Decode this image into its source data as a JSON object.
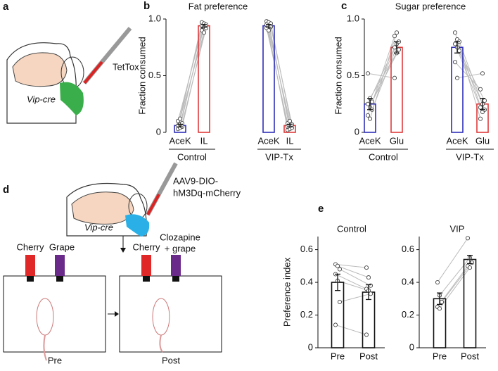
{
  "panel_labels": [
    "a",
    "b",
    "c",
    "d",
    "e"
  ],
  "diagram_a": {
    "genotype": "Vip-cre",
    "injection": "TetTox"
  },
  "diagram_d": {
    "genotype": "Vip-cre",
    "injection": [
      "AAV9-DIO-",
      "hM3Dq-mCherry"
    ],
    "pre_bottles": [
      "Cherry",
      "Grape"
    ],
    "post_bottle_1": "Cherry",
    "post_bottle_2": [
      "Clozapine",
      "+ grape"
    ],
    "pre_label": "Pre",
    "post_label": "Post"
  },
  "chart_data": [
    {
      "type": "bar",
      "title": "Fat preference",
      "ylabel": "Fraction consumed",
      "ylim": [
        0,
        1
      ],
      "yticks": [
        0,
        0.5,
        {
          "value": 1,
          "label": "1.0"
        }
      ],
      "categories": [
        "AceK",
        "IL",
        "AceK",
        "IL"
      ],
      "group_labels": [
        "Control",
        "VIP-Tx"
      ],
      "values": [
        0.06,
        0.94,
        0.94,
        0.06
      ],
      "errors": [
        0.012,
        0.012,
        0.012,
        0.012
      ],
      "colors": [
        "#2e2eb8",
        "#e03a3a",
        "#2e2eb8",
        "#e03a3a"
      ],
      "paired": true,
      "points": [
        [
          0.03,
          0.04,
          0.05,
          0.06,
          0.07,
          0.08,
          0.1,
          0.12
        ],
        [
          0.97,
          0.96,
          0.95,
          0.94,
          0.93,
          0.92,
          0.9,
          0.88
        ],
        [
          0.98,
          0.97,
          0.96,
          0.95,
          0.94,
          0.93,
          0.92,
          0.9
        ],
        [
          0.02,
          0.03,
          0.04,
          0.05,
          0.06,
          0.07,
          0.08,
          0.1
        ]
      ]
    },
    {
      "type": "bar",
      "title": "Sugar preference",
      "ylabel": "Fraction consumed",
      "ylim": [
        0,
        1
      ],
      "yticks": [
        0,
        0.5,
        {
          "value": 1,
          "label": "1.0"
        }
      ],
      "categories": [
        "AceK",
        "Glu",
        "AceK",
        "Glu"
      ],
      "group_labels": [
        "Control",
        "VIP-Tx"
      ],
      "values": [
        0.25,
        0.75,
        0.75,
        0.25
      ],
      "errors": [
        0.05,
        0.05,
        0.05,
        0.05
      ],
      "colors": [
        "#2e2eb8",
        "#e03a3a",
        "#2e2eb8",
        "#e03a3a"
      ],
      "paired": true,
      "points": [
        [
          0.52,
          0.3,
          0.27,
          0.25,
          0.22,
          0.2,
          0.15,
          0.12
        ],
        [
          0.48,
          0.7,
          0.73,
          0.75,
          0.78,
          0.8,
          0.85,
          0.88
        ],
        [
          0.88,
          0.82,
          0.8,
          0.78,
          0.75,
          0.72,
          0.62,
          0.48
        ],
        [
          0.12,
          0.18,
          0.2,
          0.22,
          0.25,
          0.28,
          0.38,
          0.52
        ]
      ]
    },
    {
      "type": "bar",
      "title": "Control",
      "ylabel": "Preference index",
      "ylim": [
        0,
        0.68
      ],
      "yticks": [
        0,
        0.2,
        0.4,
        0.6
      ],
      "categories": [
        "Pre",
        "Post"
      ],
      "values": [
        0.4,
        0.34
      ],
      "errors": [
        0.05,
        0.045
      ],
      "colors": [
        "#111111",
        "#111111"
      ],
      "paired": true,
      "points": [
        [
          0.51,
          0.5,
          0.48,
          0.45,
          0.41,
          0.28,
          0.14
        ],
        [
          0.49,
          0.43,
          0.38,
          0.36,
          0.35,
          0.33,
          0.08
        ]
      ]
    },
    {
      "type": "bar",
      "title": "VIP",
      "ylim": [
        0,
        0.68
      ],
      "yticks": [
        0,
        0.2,
        0.4,
        0.6
      ],
      "categories": [
        "Pre",
        "Post"
      ],
      "values": [
        0.3,
        0.54
      ],
      "errors": [
        0.035,
        0.025
      ],
      "colors": [
        "#111111",
        "#111111"
      ],
      "paired": true,
      "points": [
        [
          0.4,
          0.32,
          0.28,
          0.25,
          0.24
        ],
        [
          0.67,
          0.55,
          0.52,
          0.5,
          0.49
        ]
      ]
    }
  ]
}
